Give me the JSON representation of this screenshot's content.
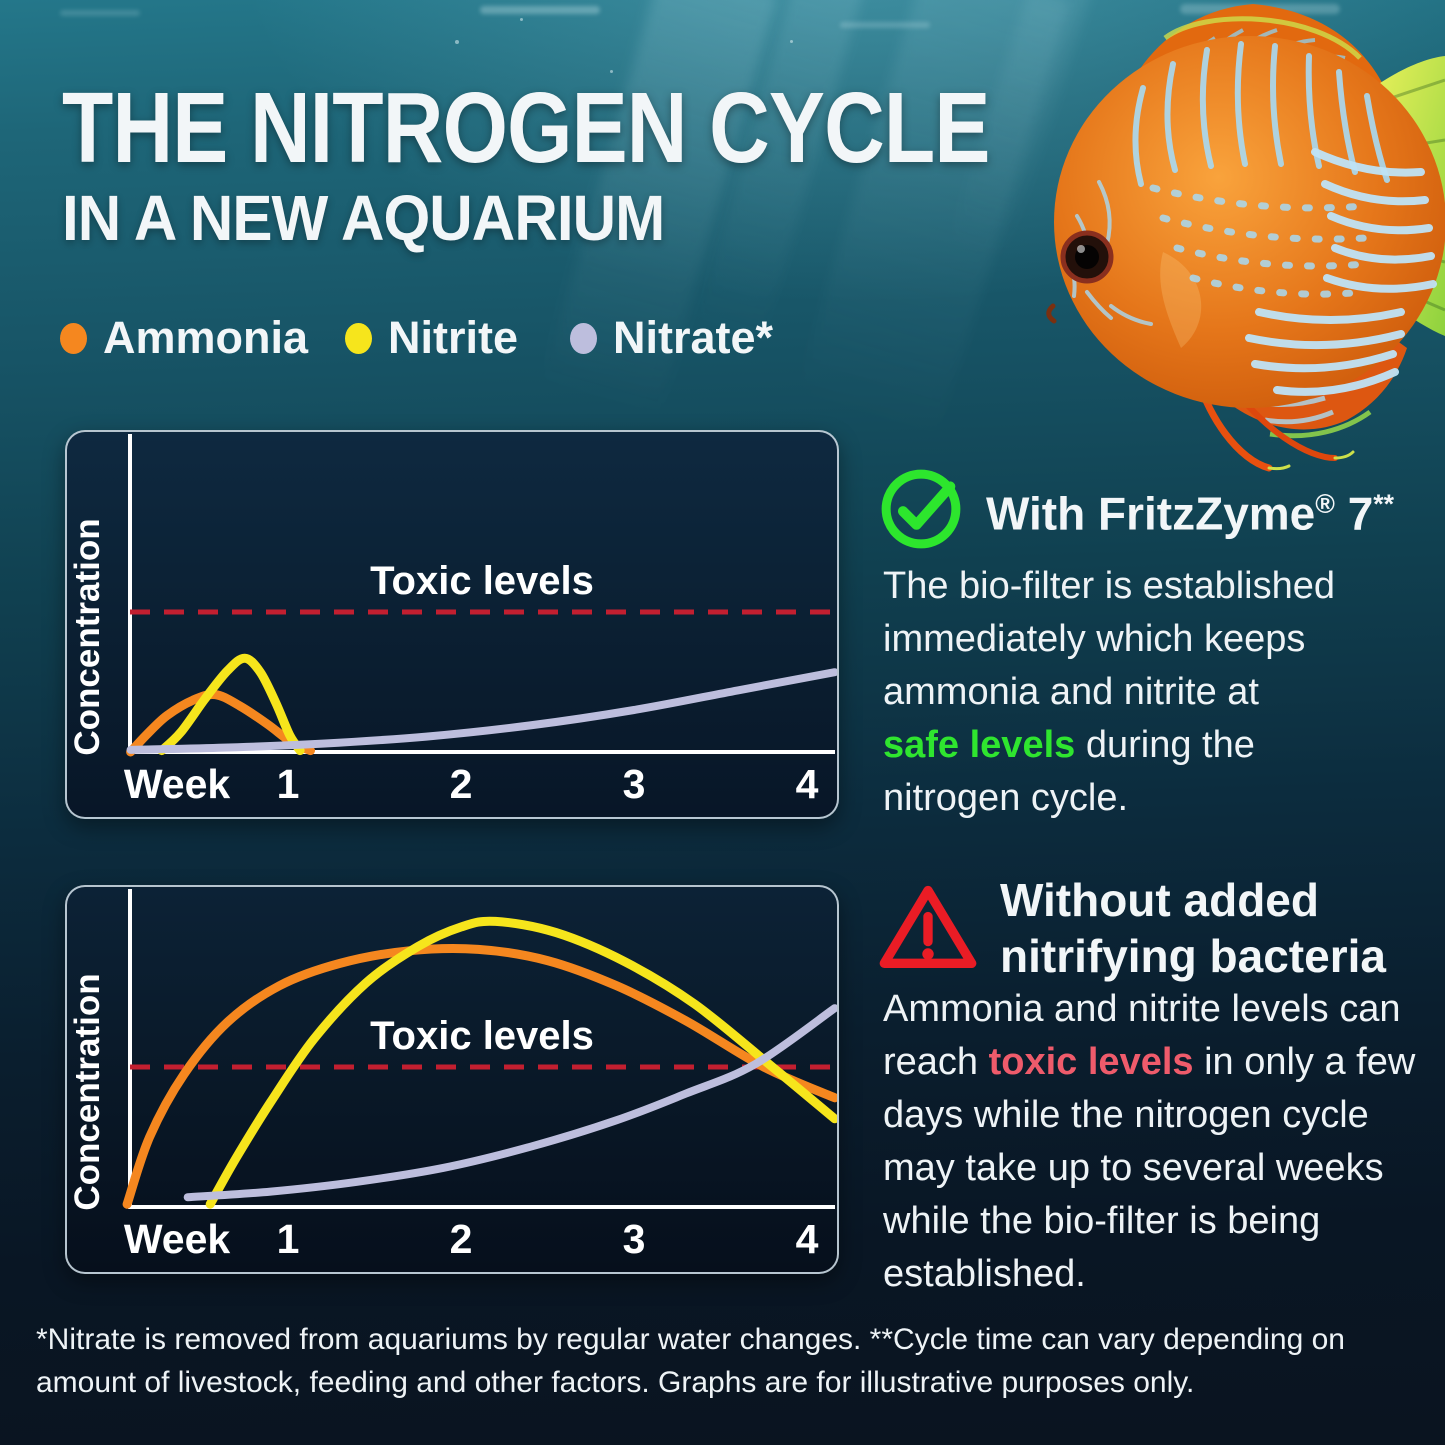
{
  "title": {
    "line1": "THE NITROGEN CYCLE",
    "line2": "IN A NEW AQUARIUM"
  },
  "legend": {
    "items": [
      {
        "label": "Ammonia",
        "color": "#f5871f"
      },
      {
        "label": "Nitrite",
        "color": "#f6e51c"
      },
      {
        "label": "Nitrate*",
        "color": "#bdbedd"
      }
    ]
  },
  "colors": {
    "safe_text": "#2fe52f",
    "toxic_text": "#ef5b6b",
    "threshold": "#c31f30",
    "check_icon": "#2de62d",
    "warning_icon": "#ea1c25"
  },
  "sections": {
    "with": {
      "icon": "check-circle",
      "icon_color": "#2de62d",
      "heading": [
        {
          "t": "With FritzZyme"
        },
        {
          "t": "®",
          "sup": true
        },
        {
          "t": " 7"
        },
        {
          "t": "**",
          "sup": true
        }
      ],
      "body": [
        {
          "t": "The bio-filter is established"
        },
        {
          "br": true
        },
        {
          "t": "immediately which keeps"
        },
        {
          "br": true
        },
        {
          "t": "ammonia and nitrite at"
        },
        {
          "br": true
        },
        {
          "t": "safe levels",
          "c": "hl-green"
        },
        {
          "t": " during the"
        },
        {
          "br": true
        },
        {
          "t": "nitrogen cycle."
        }
      ]
    },
    "without": {
      "icon": "warning-triangle",
      "icon_color": "#ea1c25",
      "heading": [
        {
          "t": "Without added"
        },
        {
          "br": true
        },
        {
          "t": "nitrifying bacteria"
        }
      ],
      "body": [
        {
          "t": "Ammonia and nitrite levels can"
        },
        {
          "br": true
        },
        {
          "t": "reach "
        },
        {
          "t": "toxic levels",
          "c": "hl-red"
        },
        {
          "t": " in only a few"
        },
        {
          "br": true
        },
        {
          "t": "days while the nitrogen cycle"
        },
        {
          "br": true
        },
        {
          "t": "may take up to several weeks"
        },
        {
          "br": true
        },
        {
          "t": "while the bio-filter is being"
        },
        {
          "br": true
        },
        {
          "t": "established."
        }
      ]
    }
  },
  "footnote": [
    {
      "t": "*Nitrate is removed from aquariums by regular water changes. **Cycle time can vary depending on"
    },
    {
      "br": true
    },
    {
      "t": "amount of livestock, feeding and other factors. Graphs are for illustrative purposes only."
    }
  ],
  "chart_data": [
    {
      "type": "line",
      "context": "With FritzZyme 7",
      "ylabel": "Concentration",
      "x_axis_label": "Week",
      "x_unit": "weeks",
      "x_ticks": [
        "1",
        "2",
        "3",
        "4"
      ],
      "x_range": [
        0,
        4.2
      ],
      "grid": false,
      "threshold": {
        "label": "Toxic levels",
        "value": 1.0,
        "color": "#c31f30",
        "style": "dashed"
      },
      "y_units": "relative concentration (toxic level = 1.0)",
      "series": [
        {
          "name": "Ammonia",
          "color": "#f5871f",
          "width": 9,
          "points": [
            [
              0.09,
              0
            ],
            [
              0.18,
              0.12
            ],
            [
              0.3,
              0.26
            ],
            [
              0.45,
              0.37
            ],
            [
              0.58,
              0.41
            ],
            [
              0.72,
              0.33
            ],
            [
              0.88,
              0.2
            ],
            [
              1.02,
              0.07
            ],
            [
              1.13,
              0.01
            ]
          ]
        },
        {
          "name": "Nitrite",
          "color": "#f6e51c",
          "width": 9,
          "points": [
            [
              0.27,
              0.01
            ],
            [
              0.38,
              0.14
            ],
            [
              0.52,
              0.38
            ],
            [
              0.65,
              0.58
            ],
            [
              0.75,
              0.67
            ],
            [
              0.84,
              0.57
            ],
            [
              0.93,
              0.35
            ],
            [
              1.01,
              0.12
            ],
            [
              1.07,
              0.01
            ]
          ]
        },
        {
          "name": "Nitrate",
          "color": "#bdbedd",
          "width": 8,
          "points": [
            [
              0.09,
              0.015
            ],
            [
              0.6,
              0.03
            ],
            [
              1.2,
              0.06
            ],
            [
              1.8,
              0.11
            ],
            [
              2.4,
              0.19
            ],
            [
              3.0,
              0.3
            ],
            [
              3.6,
              0.44
            ],
            [
              4.16,
              0.57
            ]
          ]
        }
      ]
    },
    {
      "type": "line",
      "context": "Without added nitrifying bacteria",
      "ylabel": "Concentration",
      "x_axis_label": "Week",
      "x_unit": "weeks",
      "x_ticks": [
        "1",
        "2",
        "3",
        "4"
      ],
      "x_range": [
        0,
        4.2
      ],
      "grid": false,
      "threshold": {
        "label": "Toxic levels",
        "value": 1.0,
        "color": "#c31f30",
        "style": "dashed"
      },
      "y_units": "relative concentration (toxic level = 1.0)",
      "series": [
        {
          "name": "Ammonia",
          "color": "#f5871f",
          "width": 9,
          "points": [
            [
              0.07,
              0.02
            ],
            [
              0.2,
              0.5
            ],
            [
              0.4,
              0.95
            ],
            [
              0.65,
              1.32
            ],
            [
              0.95,
              1.58
            ],
            [
              1.3,
              1.74
            ],
            [
              1.7,
              1.83
            ],
            [
              2.1,
              1.84
            ],
            [
              2.5,
              1.76
            ],
            [
              2.9,
              1.58
            ],
            [
              3.3,
              1.33
            ],
            [
              3.75,
              1.0
            ],
            [
              4.16,
              0.78
            ]
          ]
        },
        {
          "name": "Nitrite",
          "color": "#f6e51c",
          "width": 9,
          "points": [
            [
              0.55,
              0.02
            ],
            [
              0.7,
              0.35
            ],
            [
              0.9,
              0.75
            ],
            [
              1.15,
              1.2
            ],
            [
              1.45,
              1.6
            ],
            [
              1.75,
              1.86
            ],
            [
              2.0,
              2.0
            ],
            [
              2.2,
              2.04
            ],
            [
              2.55,
              1.96
            ],
            [
              2.95,
              1.75
            ],
            [
              3.35,
              1.45
            ],
            [
              3.8,
              1.0
            ],
            [
              4.16,
              0.63
            ]
          ]
        },
        {
          "name": "Nitrate",
          "color": "#bdbedd",
          "width": 8,
          "points": [
            [
              0.42,
              0.07
            ],
            [
              0.9,
              0.11
            ],
            [
              1.4,
              0.18
            ],
            [
              1.9,
              0.28
            ],
            [
              2.4,
              0.43
            ],
            [
              2.9,
              0.62
            ],
            [
              3.3,
              0.81
            ],
            [
              3.7,
              1.02
            ],
            [
              4.16,
              1.42
            ]
          ]
        }
      ]
    }
  ]
}
